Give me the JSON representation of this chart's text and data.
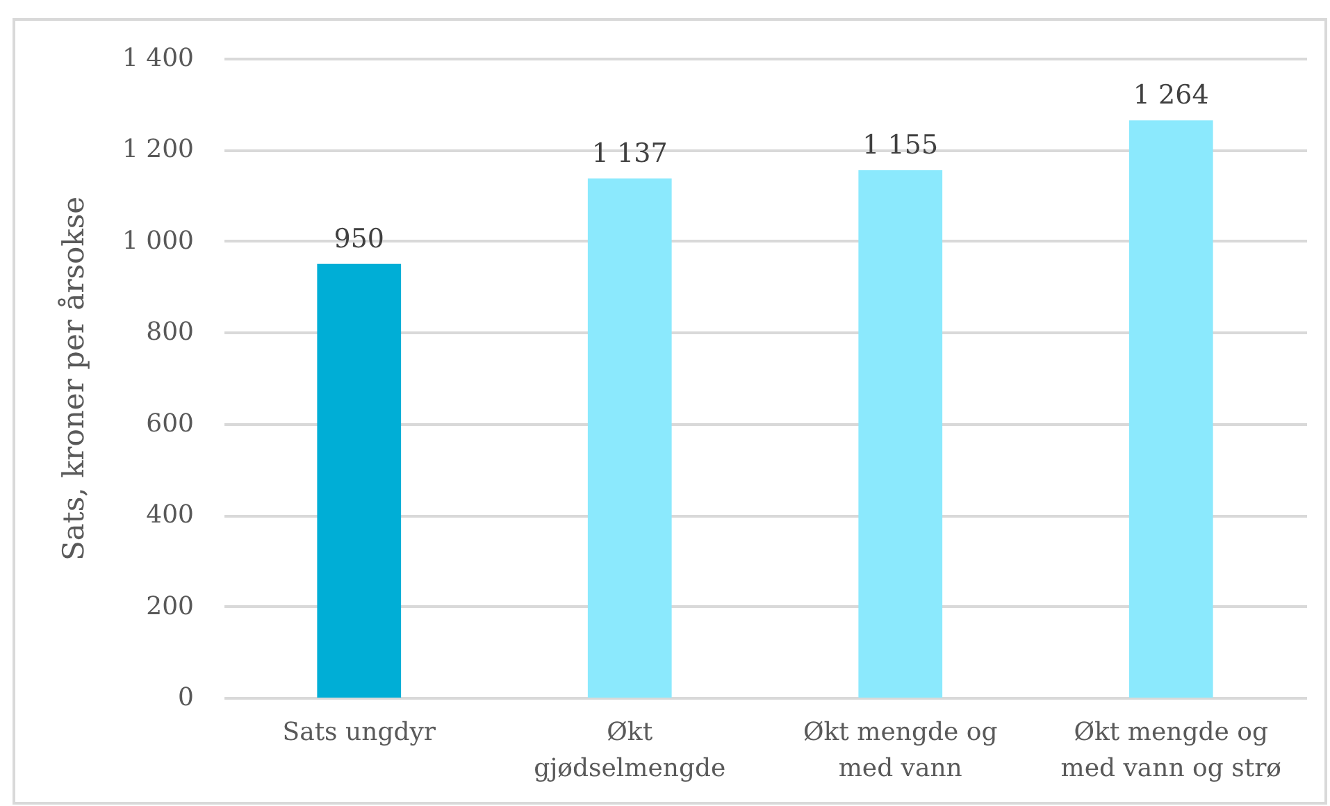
{
  "chart_data": {
    "type": "bar",
    "ylabel": "Sats, kroner per årsokse",
    "categories": [
      "Sats ungdyr",
      "Økt gjødselmengde",
      "Økt mengde og med vann",
      "Økt mengde og med vann og strø"
    ],
    "values": [
      950,
      1137,
      1155,
      1264
    ],
    "colors": [
      "#00aed6",
      "#8be9fd",
      "#8be9fd",
      "#8be9fd"
    ],
    "value_labels": [
      "950",
      "1 137",
      "1 155",
      "1 264"
    ],
    "ylim": [
      0,
      1400
    ],
    "yticks": [
      0,
      200,
      400,
      600,
      800,
      {
        "value": 1000,
        "label": "1 000"
      },
      {
        "value": 1200,
        "label": "1 200"
      },
      {
        "value": 1400,
        "label": "1 400"
      }
    ],
    "grid": "y"
  }
}
